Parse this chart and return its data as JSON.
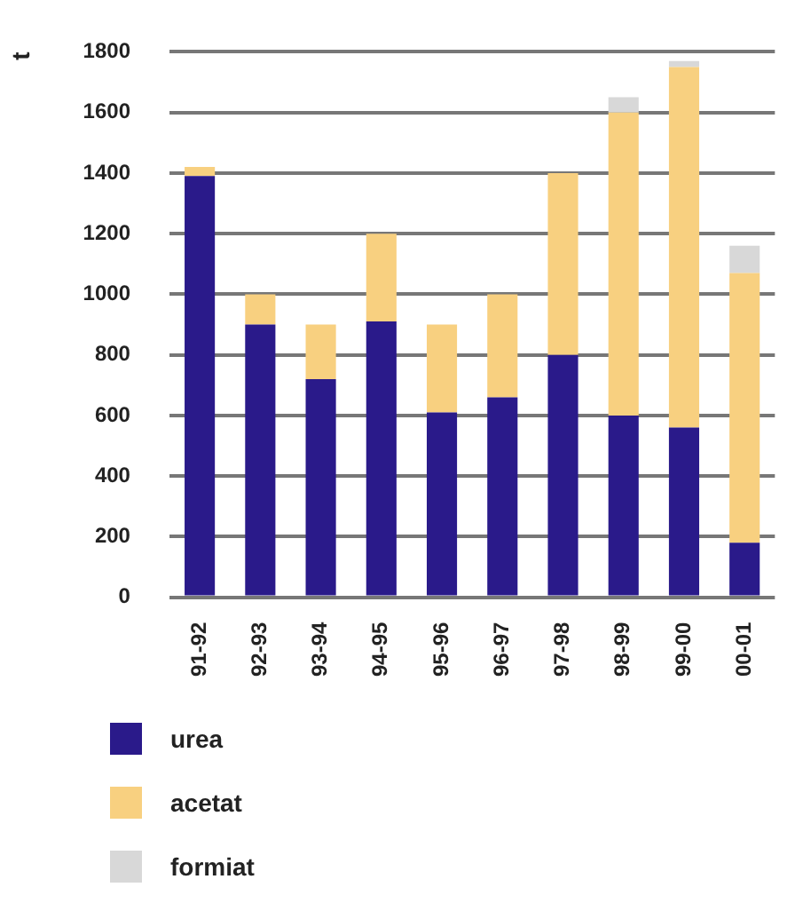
{
  "chart_data": {
    "type": "bar",
    "stacked": true,
    "ylabel": "t",
    "categories": [
      "91-92",
      "92-93",
      "93-94",
      "94-95",
      "95-96",
      "96-97",
      "97-98",
      "98-99",
      "99-00",
      "00-01"
    ],
    "series": [
      {
        "name": "urea",
        "color": "#2a1a8a",
        "values": [
          1390,
          900,
          720,
          910,
          610,
          660,
          800,
          600,
          560,
          180
        ]
      },
      {
        "name": "acetat",
        "color": "#f8d080",
        "values": [
          30,
          100,
          180,
          290,
          290,
          340,
          600,
          1000,
          1190,
          890
        ]
      },
      {
        "name": "formiat",
        "color": "#d8d8d8",
        "values": [
          0,
          0,
          0,
          0,
          0,
          0,
          0,
          50,
          20,
          90
        ]
      }
    ],
    "ylim": [
      0,
      1800
    ],
    "yticks": [
      0,
      200,
      400,
      600,
      800,
      1000,
      1200,
      1400,
      1600,
      1800
    ],
    "grid": "y",
    "legend": "bottom"
  }
}
